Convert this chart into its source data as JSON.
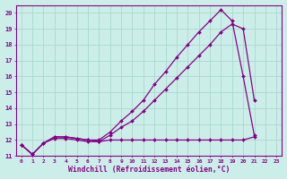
{
  "xlabel": "Windchill (Refroidissement éolien,°C)",
  "bg_color": "#cceee8",
  "grid_color": "#a8d8d0",
  "line_color": "#880088",
  "x_ticks": [
    0,
    1,
    2,
    3,
    4,
    5,
    6,
    7,
    8,
    9,
    10,
    11,
    12,
    13,
    14,
    15,
    16,
    17,
    18,
    19,
    20,
    21,
    22,
    23
  ],
  "ylim": [
    11,
    20.5
  ],
  "xlim": [
    -0.5,
    23.5
  ],
  "y_ticks": [
    11,
    12,
    13,
    14,
    15,
    16,
    17,
    18,
    19,
    20
  ],
  "line1_y": [
    11.7,
    11.1,
    11.8,
    12.1,
    12.1,
    12.0,
    11.9,
    11.9,
    12.3,
    12.8,
    13.2,
    13.8,
    14.5,
    15.2,
    15.9,
    16.6,
    17.3,
    18.0,
    18.8,
    19.3,
    19.0,
    14.5,
    null,
    null
  ],
  "line2_y": [
    11.7,
    11.1,
    11.8,
    12.2,
    12.2,
    12.1,
    12.0,
    12.0,
    12.5,
    13.2,
    13.8,
    14.5,
    15.5,
    16.3,
    17.2,
    18.0,
    18.8,
    19.5,
    20.2,
    19.5,
    16.0,
    12.3,
    null,
    null
  ],
  "line3_y": [
    11.7,
    11.1,
    11.8,
    12.2,
    12.2,
    12.1,
    12.0,
    11.9,
    12.0,
    12.0,
    12.0,
    12.0,
    12.0,
    12.0,
    12.0,
    12.0,
    12.0,
    12.0,
    12.0,
    12.0,
    12.0,
    12.2,
    null,
    null
  ]
}
